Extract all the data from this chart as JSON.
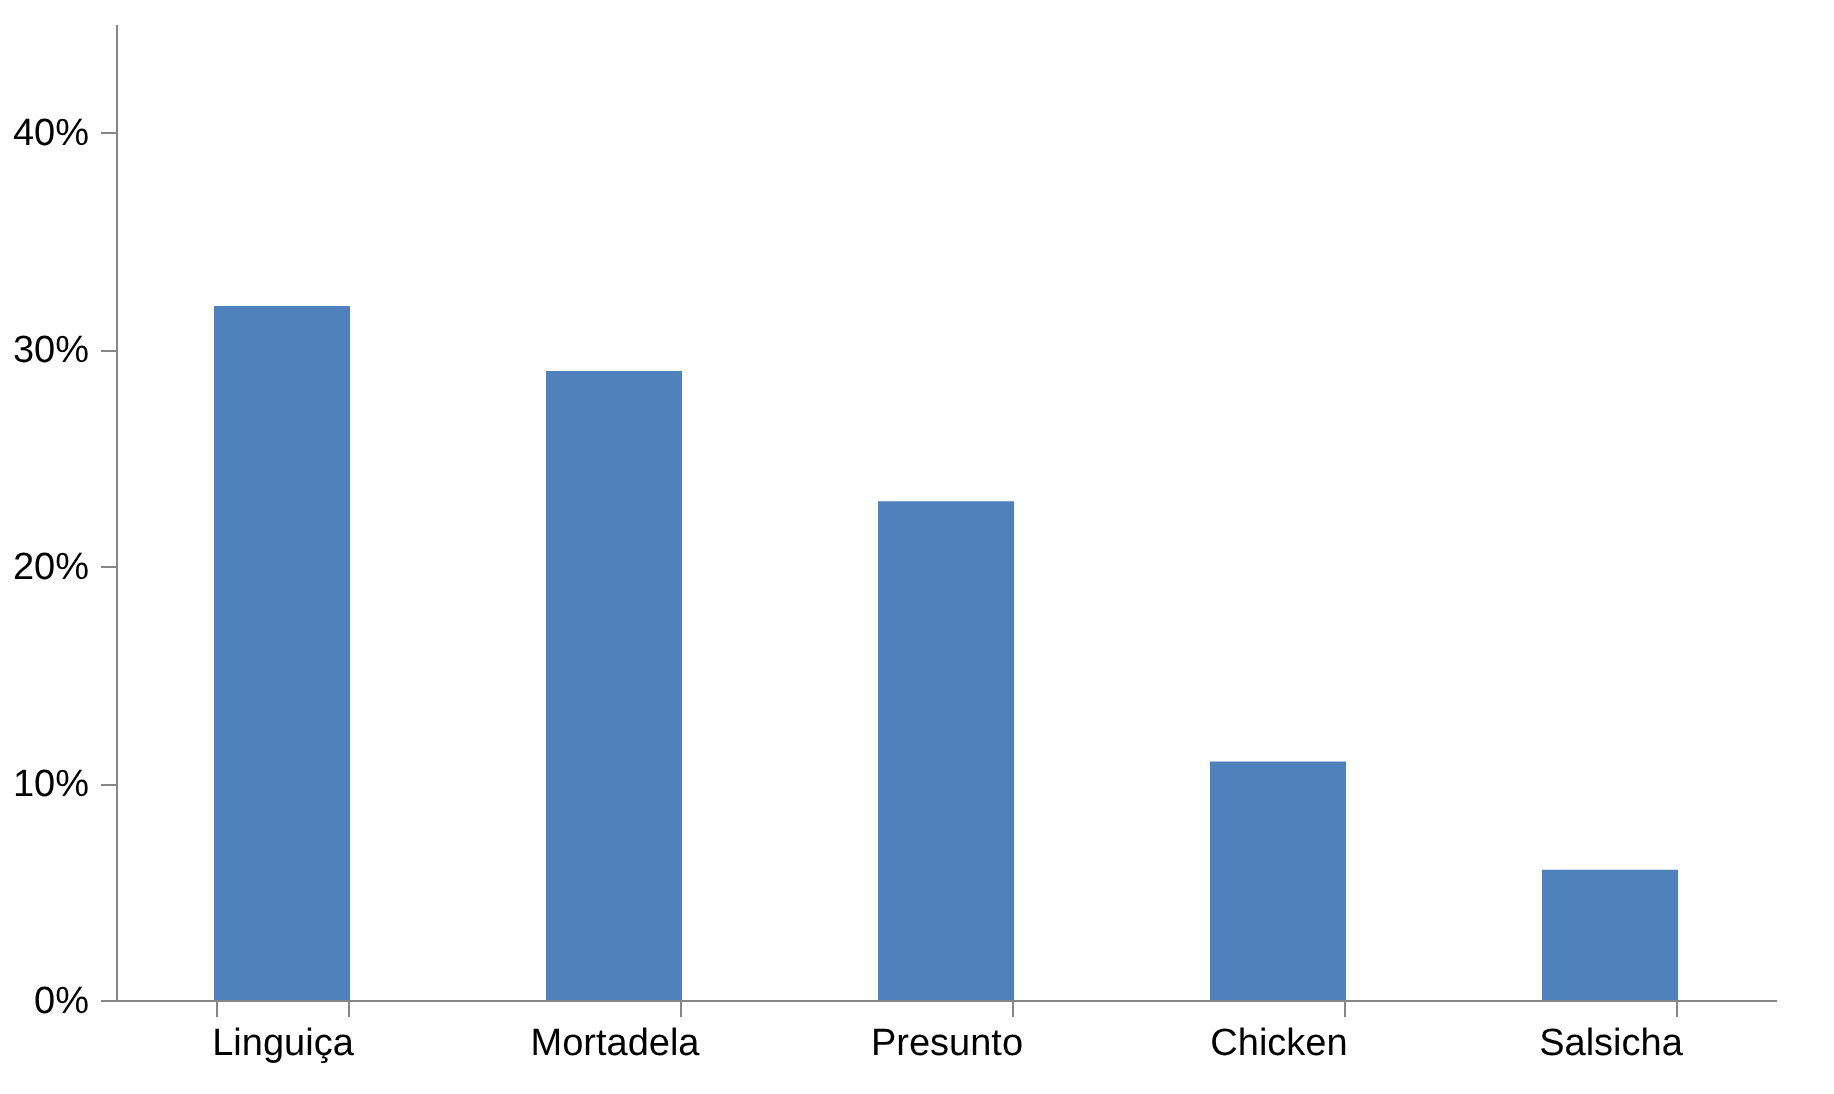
{
  "chart_data": {
    "type": "bar",
    "categories": [
      "Linguiça",
      "Mortadela",
      "Presunto",
      "Chicken",
      "Salsicha"
    ],
    "values": [
      32,
      29,
      23,
      11,
      6
    ],
    "color": "#4f81bd",
    "ylim": [
      0,
      45
    ],
    "yticks": [
      {
        "value": 0,
        "label": "0%"
      },
      {
        "value": 10,
        "label": "10%"
      },
      {
        "value": 20,
        "label": "20%"
      },
      {
        "value": 30,
        "label": "30%"
      },
      {
        "value": 40,
        "label": "40%"
      }
    ],
    "grid": false
  }
}
